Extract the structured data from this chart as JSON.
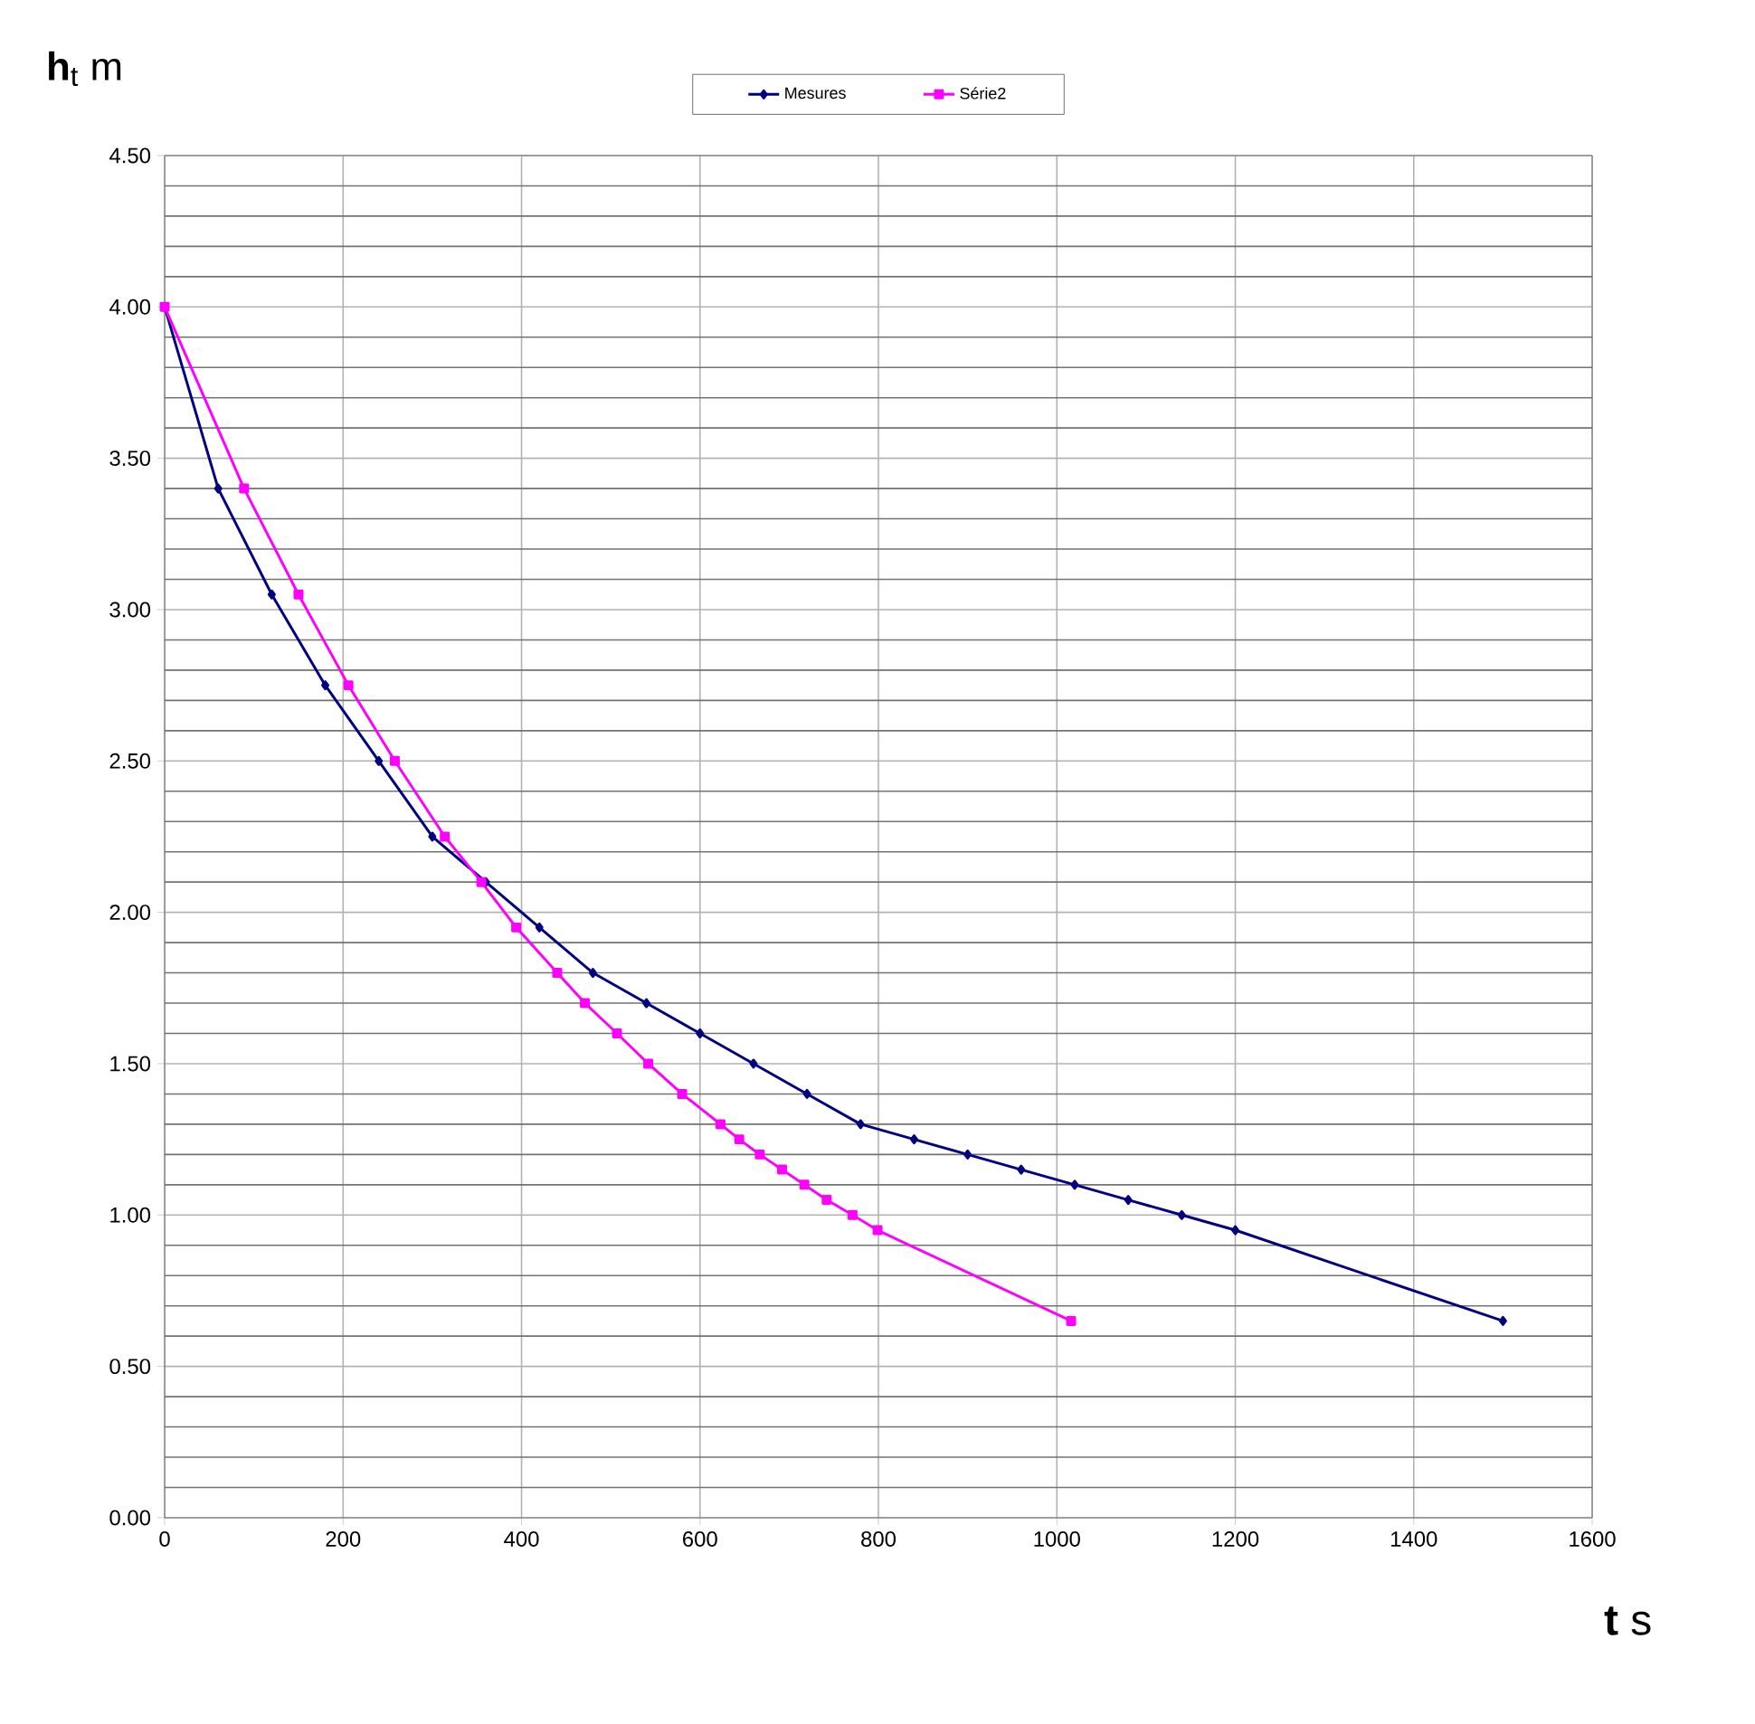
{
  "chart_data": {
    "type": "line",
    "ylabel": "**h**$_{t}$ m",
    "xlabel": "**t**  s",
    "xlim": [
      0,
      1600
    ],
    "xticks": [
      0,
      200,
      400,
      600,
      800,
      1000,
      1200,
      1400,
      1600
    ],
    "ylim": [
      0,
      4.5
    ],
    "yticks": [
      {
        "value": 0,
        "label": "0.00"
      },
      {
        "value": 0.5,
        "label": "0.50"
      },
      {
        "value": 1,
        "label": "1.00"
      },
      {
        "value": 1.5,
        "label": "1.50"
      },
      {
        "value": 2,
        "label": "2.00"
      },
      {
        "value": 2.5,
        "label": "2.50"
      },
      {
        "value": 3,
        "label": "3.00"
      },
      {
        "value": 3.5,
        "label": "3.50"
      },
      {
        "value": 4,
        "label": "4.00"
      },
      {
        "value": 4.5,
        "label": "4.50"
      }
    ],
    "grid": true,
    "legend": "top",
    "series": [
      {
        "name": "Mesures",
        "color": "#000080",
        "marker": "diamond",
        "x": [
          0,
          60,
          120,
          180,
          240,
          300,
          360,
          420,
          480,
          540,
          600,
          660,
          720,
          780,
          840,
          900,
          960,
          1020,
          1080,
          1140,
          1200,
          1500
        ],
        "values": [
          4.0,
          3.4,
          3.05,
          2.75,
          2.5,
          2.25,
          2.1,
          1.95,
          1.8,
          1.7,
          1.6,
          1.5,
          1.4,
          1.3,
          1.25,
          1.2,
          1.15,
          1.1,
          1.05,
          1.0,
          0.95,
          0.65
        ]
      },
      {
        "name": "Série2",
        "color": "#ff00ff",
        "marker": "square",
        "x": [
          0,
          89,
          150,
          206,
          258,
          314,
          355,
          394,
          440,
          471,
          507,
          542,
          580,
          623,
          644,
          667,
          692,
          717,
          742,
          771,
          799,
          1016
        ],
        "values": [
          4.0,
          3.4,
          3.05,
          2.75,
          2.5,
          2.25,
          2.1,
          1.95,
          1.8,
          1.7,
          1.6,
          1.5,
          1.4,
          1.3,
          1.25,
          1.2,
          1.15,
          1.1,
          1.05,
          1.0,
          0.95,
          0.65
        ]
      }
    ]
  }
}
